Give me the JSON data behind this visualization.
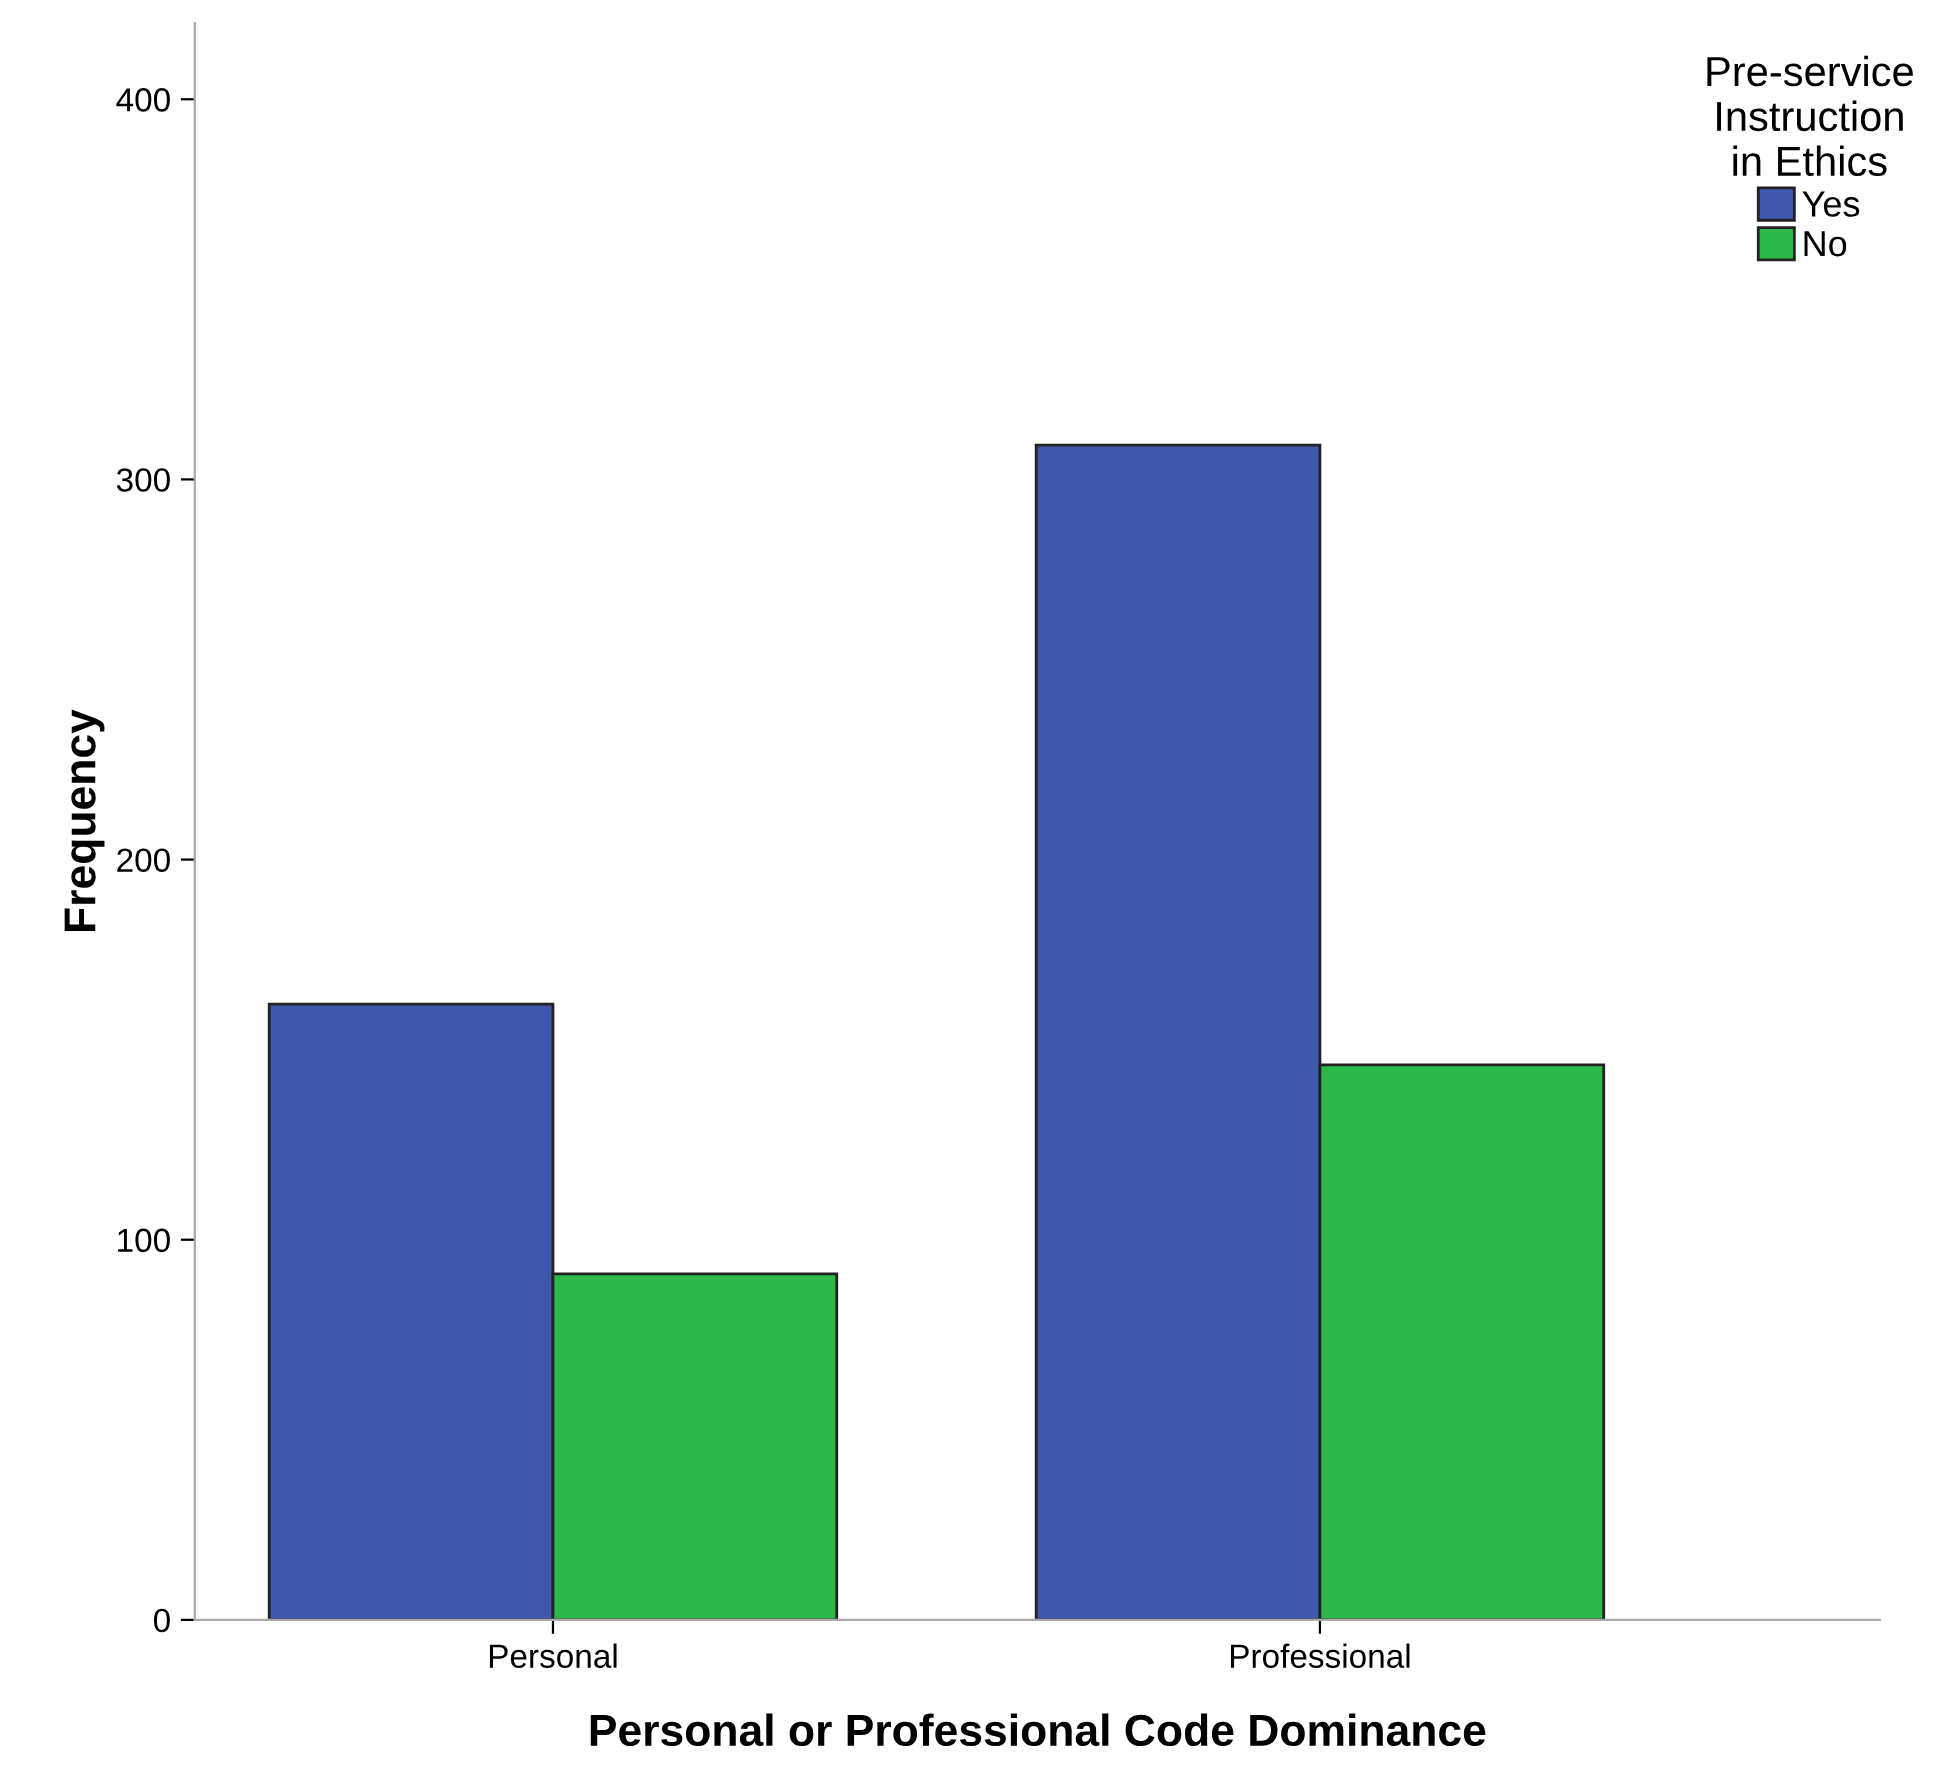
{
  "chart_data": {
    "type": "bar",
    "xlabel": "Personal or Professional Code Dominance",
    "ylabel": "Frequency",
    "legend_title": "Pre-service\nInstruction\nin Ethics",
    "categories": [
      "Personal",
      "Professional"
    ],
    "series": [
      {
        "name": "Yes",
        "color": "#3e58ac",
        "values": [
          162,
          309
        ]
      },
      {
        "name": "No",
        "color": "#2db84a",
        "values": [
          91,
          146
        ]
      }
    ],
    "ylim": [
      0,
      420
    ],
    "yticks": [
      0,
      100,
      200,
      300,
      400
    ],
    "grid": false,
    "legend": "top right"
  }
}
